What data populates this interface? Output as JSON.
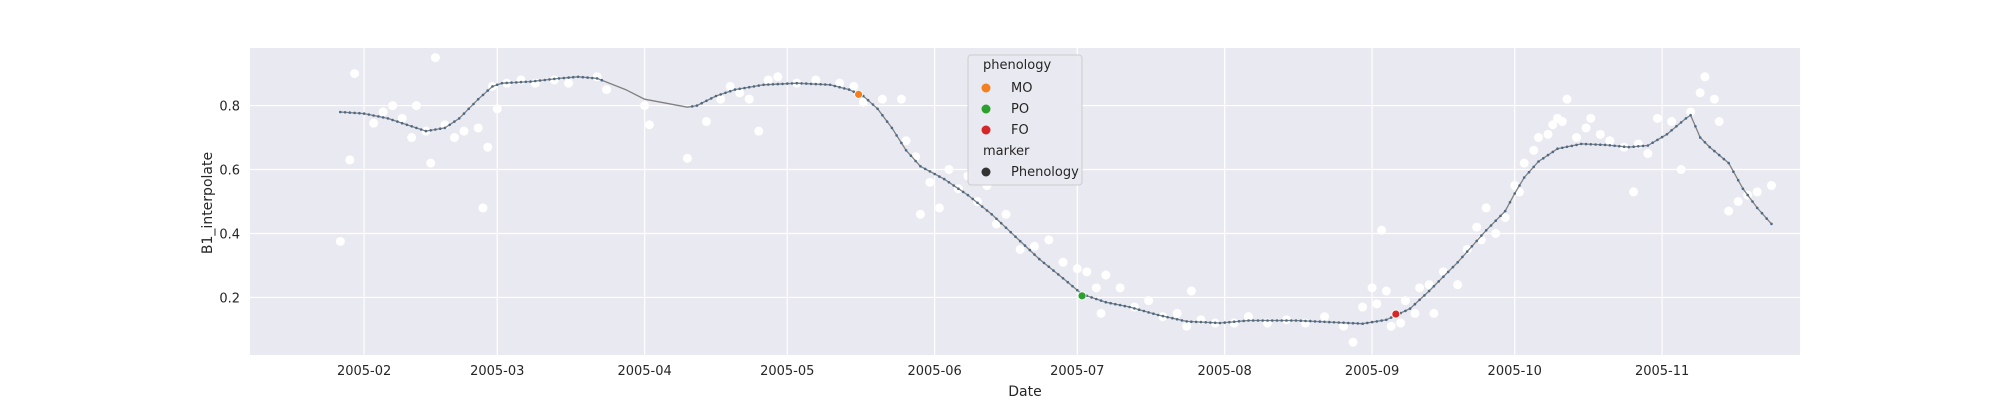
{
  "chart_data": {
    "type": "scatter",
    "xlabel": "Date",
    "ylabel": "B1_interpolate",
    "x_ticks": [
      "2005-02",
      "2005-03",
      "2005-04",
      "2005-05",
      "2005-06",
      "2005-07",
      "2005-08",
      "2005-09",
      "2005-10",
      "2005-11"
    ],
    "y_ticks": [
      0.2,
      0.4,
      0.6,
      0.8
    ],
    "xlim": [
      "2005-01-08",
      "2005-11-30"
    ],
    "ylim": [
      0.02,
      0.98
    ],
    "grid": true,
    "legend": {
      "placement": "top-center",
      "sections": [
        {
          "title": "phenology",
          "entries": [
            {
              "label": "MO",
              "color": "#f47f1f"
            },
            {
              "label": "PO",
              "color": "#2ca02c"
            },
            {
              "label": "FO",
              "color": "#d62728"
            }
          ]
        },
        {
          "title": "marker",
          "entries": [
            {
              "label": "Phenology",
              "color": "#333333"
            }
          ]
        }
      ]
    },
    "colors": {
      "background": "#e9e9f1",
      "grid": "#ffffff",
      "raw_points": "#ffffff",
      "line": "#808080",
      "line_dots": "#4c6a86"
    },
    "series": [
      {
        "name": "",
        "role": "interpolated",
        "style": "line",
        "points": [
          [
            "2005-01-27",
            0.78
          ],
          [
            "2005-02-01",
            0.775
          ],
          [
            "2005-02-06",
            0.76
          ],
          [
            "2005-02-10",
            0.74
          ],
          [
            "2005-02-14",
            0.72
          ],
          [
            "2005-02-18",
            0.73
          ],
          [
            "2005-02-21",
            0.76
          ],
          [
            "2005-02-25",
            0.82
          ],
          [
            "2005-02-28",
            0.86
          ],
          [
            "2005-03-02",
            0.87
          ],
          [
            "2005-03-08",
            0.875
          ],
          [
            "2005-03-14",
            0.885
          ],
          [
            "2005-03-18",
            0.89
          ],
          [
            "2005-03-22",
            0.885
          ],
          [
            "2005-03-28",
            0.85
          ],
          [
            "2005-04-01",
            0.82
          ],
          [
            "2005-04-10",
            0.795
          ],
          [
            "2005-04-12",
            0.8
          ],
          [
            "2005-04-16",
            0.83
          ],
          [
            "2005-04-20",
            0.85
          ],
          [
            "2005-04-26",
            0.865
          ],
          [
            "2005-05-03",
            0.87
          ],
          [
            "2005-05-10",
            0.865
          ],
          [
            "2005-05-14",
            0.85
          ],
          [
            "2005-05-17",
            0.83
          ],
          [
            "2005-05-20",
            0.79
          ],
          [
            "2005-05-23",
            0.73
          ],
          [
            "2005-05-26",
            0.66
          ],
          [
            "2005-05-29",
            0.61
          ],
          [
            "2005-06-03",
            0.57
          ],
          [
            "2005-06-08",
            0.52
          ],
          [
            "2005-06-13",
            0.46
          ],
          [
            "2005-06-18",
            0.39
          ],
          [
            "2005-06-23",
            0.32
          ],
          [
            "2005-06-28",
            0.26
          ],
          [
            "2005-07-02",
            0.21
          ],
          [
            "2005-07-07",
            0.185
          ],
          [
            "2005-07-12",
            0.17
          ],
          [
            "2005-07-18",
            0.145
          ],
          [
            "2005-07-24",
            0.125
          ],
          [
            "2005-07-31",
            0.12
          ],
          [
            "2005-08-06",
            0.128
          ],
          [
            "2005-08-16",
            0.128
          ],
          [
            "2005-08-23",
            0.123
          ],
          [
            "2005-08-30",
            0.118
          ],
          [
            "2005-09-04",
            0.13
          ],
          [
            "2005-09-09",
            0.165
          ],
          [
            "2005-09-13",
            0.22
          ],
          [
            "2005-09-19",
            0.31
          ],
          [
            "2005-09-25",
            0.41
          ],
          [
            "2005-09-29",
            0.47
          ],
          [
            "2005-10-01",
            0.525
          ],
          [
            "2005-10-03",
            0.575
          ],
          [
            "2005-10-06",
            0.625
          ],
          [
            "2005-10-10",
            0.665
          ],
          [
            "2005-10-15",
            0.68
          ],
          [
            "2005-10-20",
            0.677
          ],
          [
            "2005-10-25",
            0.67
          ],
          [
            "2005-10-29",
            0.675
          ],
          [
            "2005-11-02",
            0.71
          ],
          [
            "2005-11-06",
            0.76
          ],
          [
            "2005-11-07",
            0.77
          ],
          [
            "2005-11-09",
            0.7
          ],
          [
            "2005-11-11",
            0.67
          ],
          [
            "2005-11-15",
            0.62
          ],
          [
            "2005-11-18",
            0.54
          ],
          [
            "2005-11-21",
            0.48
          ],
          [
            "2005-11-24",
            0.43
          ]
        ]
      },
      {
        "name": "",
        "role": "observed",
        "style": "scatter",
        "points": [
          [
            "2005-01-27",
            0.375
          ],
          [
            "2005-01-29",
            0.63
          ],
          [
            "2005-01-30",
            0.9
          ],
          [
            "2005-02-03",
            0.745
          ],
          [
            "2005-02-05",
            0.78
          ],
          [
            "2005-02-07",
            0.8
          ],
          [
            "2005-02-09",
            0.76
          ],
          [
            "2005-02-11",
            0.7
          ],
          [
            "2005-02-12",
            0.8
          ],
          [
            "2005-02-14",
            0.72
          ],
          [
            "2005-02-15",
            0.62
          ],
          [
            "2005-02-16",
            0.95
          ],
          [
            "2005-02-18",
            0.74
          ],
          [
            "2005-02-20",
            0.7
          ],
          [
            "2005-02-22",
            0.72
          ],
          [
            "2005-02-25",
            0.73
          ],
          [
            "2005-02-26",
            0.48
          ],
          [
            "2005-02-27",
            0.67
          ],
          [
            "2005-02-28",
            0.86
          ],
          [
            "2005-03-01",
            0.79
          ],
          [
            "2005-03-03",
            0.87
          ],
          [
            "2005-03-06",
            0.88
          ],
          [
            "2005-03-09",
            0.87
          ],
          [
            "2005-03-13",
            0.88
          ],
          [
            "2005-03-16",
            0.87
          ],
          [
            "2005-03-22",
            0.89
          ],
          [
            "2005-03-24",
            0.85
          ],
          [
            "2005-04-01",
            0.8
          ],
          [
            "2005-04-02",
            0.74
          ],
          [
            "2005-04-10",
            0.635
          ],
          [
            "2005-04-14",
            0.75
          ],
          [
            "2005-04-17",
            0.82
          ],
          [
            "2005-04-19",
            0.86
          ],
          [
            "2005-04-21",
            0.84
          ],
          [
            "2005-04-23",
            0.82
          ],
          [
            "2005-04-25",
            0.72
          ],
          [
            "2005-04-27",
            0.88
          ],
          [
            "2005-04-29",
            0.89
          ],
          [
            "2005-05-03",
            0.87
          ],
          [
            "2005-05-07",
            0.88
          ],
          [
            "2005-05-12",
            0.87
          ],
          [
            "2005-05-15",
            0.86
          ],
          [
            "2005-05-17",
            0.81
          ],
          [
            "2005-05-21",
            0.82
          ],
          [
            "2005-05-25",
            0.82
          ],
          [
            "2005-05-26",
            0.69
          ],
          [
            "2005-05-28",
            0.64
          ],
          [
            "2005-05-29",
            0.46
          ],
          [
            "2005-05-31",
            0.56
          ],
          [
            "2005-06-02",
            0.48
          ],
          [
            "2005-06-04",
            0.6
          ],
          [
            "2005-06-06",
            0.54
          ],
          [
            "2005-06-08",
            0.58
          ],
          [
            "2005-06-10",
            0.5
          ],
          [
            "2005-06-12",
            0.55
          ],
          [
            "2005-06-14",
            0.43
          ],
          [
            "2005-06-16",
            0.46
          ],
          [
            "2005-06-19",
            0.35
          ],
          [
            "2005-06-22",
            0.36
          ],
          [
            "2005-06-25",
            0.38
          ],
          [
            "2005-06-28",
            0.31
          ],
          [
            "2005-07-01",
            0.29
          ],
          [
            "2005-07-03",
            0.28
          ],
          [
            "2005-07-05",
            0.23
          ],
          [
            "2005-07-06",
            0.15
          ],
          [
            "2005-07-07",
            0.27
          ],
          [
            "2005-07-10",
            0.23
          ],
          [
            "2005-07-13",
            0.17
          ],
          [
            "2005-07-16",
            0.19
          ],
          [
            "2005-07-19",
            0.14
          ],
          [
            "2005-07-22",
            0.15
          ],
          [
            "2005-07-24",
            0.11
          ],
          [
            "2005-07-25",
            0.22
          ],
          [
            "2005-07-27",
            0.13
          ],
          [
            "2005-07-30",
            0.12
          ],
          [
            "2005-08-03",
            0.12
          ],
          [
            "2005-08-06",
            0.14
          ],
          [
            "2005-08-10",
            0.12
          ],
          [
            "2005-08-14",
            0.13
          ],
          [
            "2005-08-18",
            0.12
          ],
          [
            "2005-08-22",
            0.14
          ],
          [
            "2005-08-26",
            0.11
          ],
          [
            "2005-08-28",
            0.06
          ],
          [
            "2005-08-30",
            0.17
          ],
          [
            "2005-09-01",
            0.23
          ],
          [
            "2005-09-02",
            0.18
          ],
          [
            "2005-09-03",
            0.41
          ],
          [
            "2005-09-04",
            0.22
          ],
          [
            "2005-09-05",
            0.11
          ],
          [
            "2005-09-07",
            0.12
          ],
          [
            "2005-09-08",
            0.19
          ],
          [
            "2005-09-10",
            0.15
          ],
          [
            "2005-09-11",
            0.23
          ],
          [
            "2005-09-13",
            0.24
          ],
          [
            "2005-09-14",
            0.15
          ],
          [
            "2005-09-16",
            0.28
          ],
          [
            "2005-09-19",
            0.24
          ],
          [
            "2005-09-21",
            0.35
          ],
          [
            "2005-09-23",
            0.42
          ],
          [
            "2005-09-24",
            0.38
          ],
          [
            "2005-09-25",
            0.48
          ],
          [
            "2005-09-27",
            0.4
          ],
          [
            "2005-09-29",
            0.45
          ],
          [
            "2005-10-01",
            0.55
          ],
          [
            "2005-10-02",
            0.53
          ],
          [
            "2005-10-03",
            0.62
          ],
          [
            "2005-10-05",
            0.66
          ],
          [
            "2005-10-06",
            0.7
          ],
          [
            "2005-10-08",
            0.71
          ],
          [
            "2005-10-09",
            0.74
          ],
          [
            "2005-10-10",
            0.76
          ],
          [
            "2005-10-11",
            0.75
          ],
          [
            "2005-10-12",
            0.82
          ],
          [
            "2005-10-14",
            0.7
          ],
          [
            "2005-10-16",
            0.73
          ],
          [
            "2005-10-17",
            0.76
          ],
          [
            "2005-10-19",
            0.71
          ],
          [
            "2005-10-21",
            0.69
          ],
          [
            "2005-10-24",
            0.67
          ],
          [
            "2005-10-26",
            0.53
          ],
          [
            "2005-10-27",
            0.68
          ],
          [
            "2005-10-29",
            0.65
          ],
          [
            "2005-10-31",
            0.76
          ],
          [
            "2005-11-03",
            0.75
          ],
          [
            "2005-11-05",
            0.6
          ],
          [
            "2005-11-07",
            0.78
          ],
          [
            "2005-11-09",
            0.84
          ],
          [
            "2005-11-10",
            0.89
          ],
          [
            "2005-11-12",
            0.82
          ],
          [
            "2005-11-13",
            0.75
          ],
          [
            "2005-11-15",
            0.47
          ],
          [
            "2005-11-17",
            0.5
          ],
          [
            "2005-11-19",
            0.52
          ],
          [
            "2005-11-21",
            0.53
          ],
          [
            "2005-11-24",
            0.55
          ]
        ]
      },
      {
        "name": "MO",
        "role": "phenology",
        "style": "marker",
        "color": "#f47f1f",
        "points": [
          [
            "2005-05-16",
            0.835
          ]
        ]
      },
      {
        "name": "PO",
        "role": "phenology",
        "style": "marker",
        "color": "#2ca02c",
        "points": [
          [
            "2005-07-02",
            0.205
          ]
        ]
      },
      {
        "name": "FO",
        "role": "phenology",
        "style": "marker",
        "color": "#d62728",
        "points": [
          [
            "2005-09-06",
            0.148
          ]
        ]
      }
    ]
  }
}
